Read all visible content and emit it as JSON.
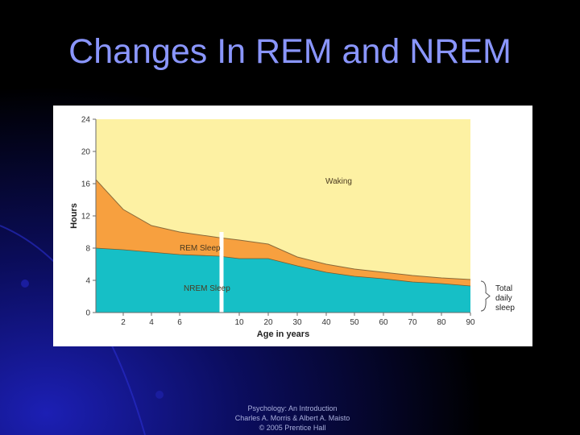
{
  "slide": {
    "title": "Changes In REM and NREM",
    "footer": [
      "Psychology: An Introduction",
      "Charles A. Morris & Albert A. Maisto",
      "© 2005 Prentice Hall"
    ]
  },
  "colors": {
    "title": "#8a96ff",
    "waking": "#fdf1a3",
    "rem": "#f7a03f",
    "nrem": "#16bfc6"
  },
  "chart_data": {
    "type": "area",
    "ylabel": "Hours",
    "xlabel": "Age in years",
    "ylim": [
      0,
      24
    ],
    "yticks": [
      "24",
      "20",
      "16",
      "12",
      "8",
      "4",
      "0"
    ],
    "xticks": [
      "2",
      "4",
      "6",
      "10",
      "20",
      "30",
      "40",
      "50",
      "60",
      "70",
      "80",
      "90"
    ],
    "axis_break": "between 6 and 10",
    "grid": false,
    "x": [
      "0",
      "2",
      "4",
      "6",
      "7",
      "10",
      "20",
      "30",
      "40",
      "50",
      "60",
      "70",
      "80",
      "90"
    ],
    "series": [
      {
        "name": "NREM Sleep",
        "values": [
          8.0,
          7.8,
          7.5,
          7.2,
          7.0,
          6.7,
          6.7,
          5.8,
          5.0,
          4.5,
          4.2,
          3.8,
          3.6,
          3.3
        ]
      },
      {
        "name": "REM Sleep",
        "values": [
          8.5,
          5.0,
          3.3,
          2.8,
          2.3,
          2.3,
          1.8,
          1.1,
          1.0,
          0.9,
          0.8,
          0.8,
          0.7,
          0.8
        ]
      },
      {
        "name": "Waking",
        "values": [
          7.5,
          11.2,
          13.2,
          14.0,
          14.7,
          15.0,
          15.5,
          17.1,
          18.0,
          18.6,
          19.0,
          19.4,
          19.7,
          19.9
        ]
      }
    ],
    "annotations": [
      "Waking",
      "REM Sleep",
      "NREM Sleep",
      "Total daily sleep"
    ]
  }
}
